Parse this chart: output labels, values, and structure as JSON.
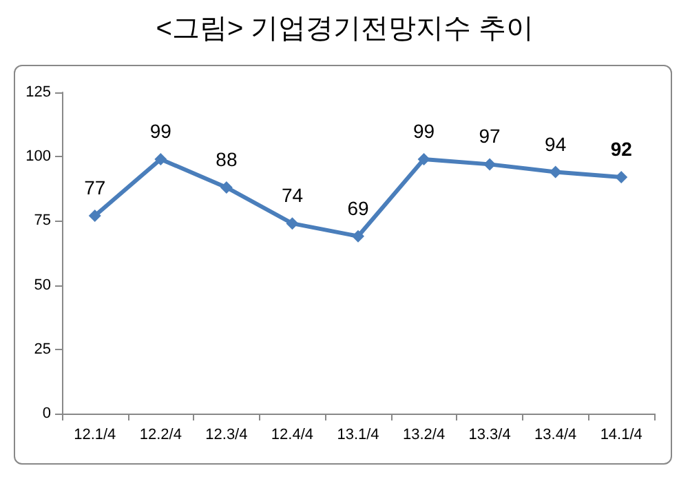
{
  "chart_data": {
    "type": "line",
    "title": "<그림> 기업경기전망지수 추이",
    "categories": [
      "12.1/4",
      "12.2/4",
      "12.3/4",
      "12.4/4",
      "13.1/4",
      "13.2/4",
      "13.3/4",
      "13.4/4",
      "14.1/4"
    ],
    "values": [
      77,
      99,
      88,
      74,
      69,
      99,
      97,
      94,
      92
    ],
    "color": "#4a7ebb",
    "ylim": [
      0,
      125
    ],
    "yticks": [
      0,
      25,
      50,
      75,
      100,
      125
    ],
    "marker": "diamond",
    "line_style": "solid",
    "data_labels": true
  }
}
